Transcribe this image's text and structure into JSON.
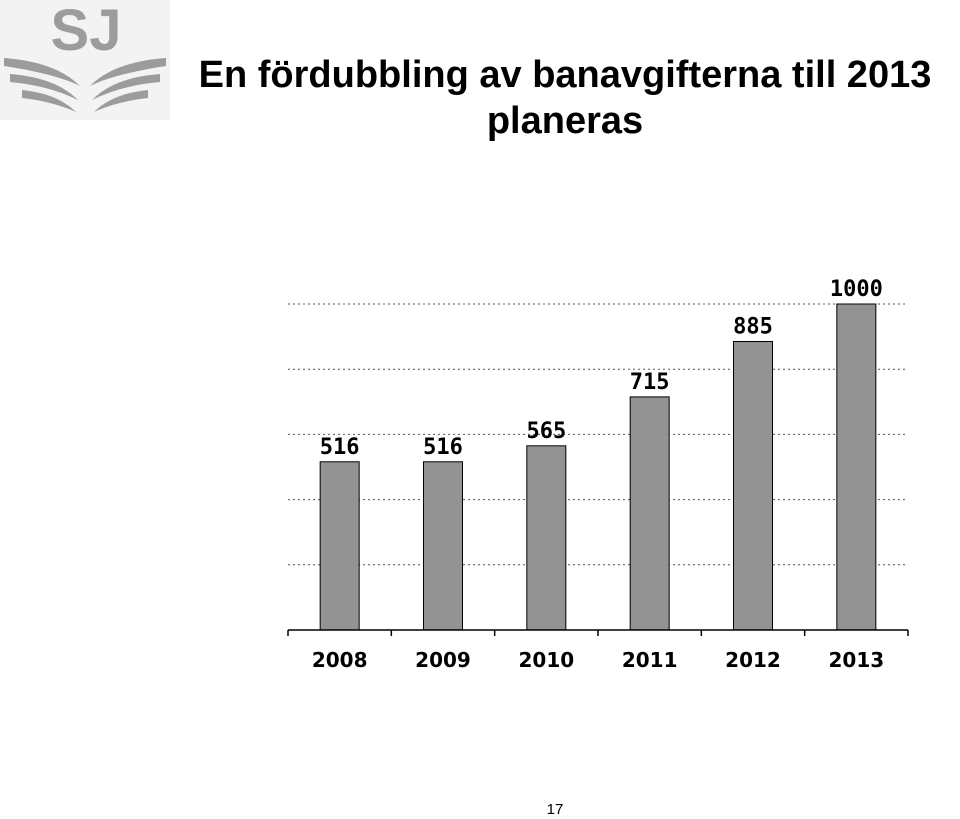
{
  "logo": {
    "text": "SJ",
    "color": "#9c9c9c"
  },
  "header": {
    "title_line1": "En fördubbling av banavgifterna till 2013",
    "title_line2": "planeras"
  },
  "chart_data": {
    "type": "bar",
    "categories": [
      "2008",
      "2009",
      "2010",
      "2011",
      "2012",
      "2013"
    ],
    "values": [
      516,
      516,
      565,
      715,
      885,
      1000
    ],
    "data_labels": [
      "516",
      "516",
      "565",
      "715",
      "885",
      "1000"
    ],
    "ylim": [
      0,
      1000
    ],
    "grid": true,
    "legend": "none",
    "bar_color": "#939393"
  },
  "footer": {
    "page_number": "17"
  }
}
